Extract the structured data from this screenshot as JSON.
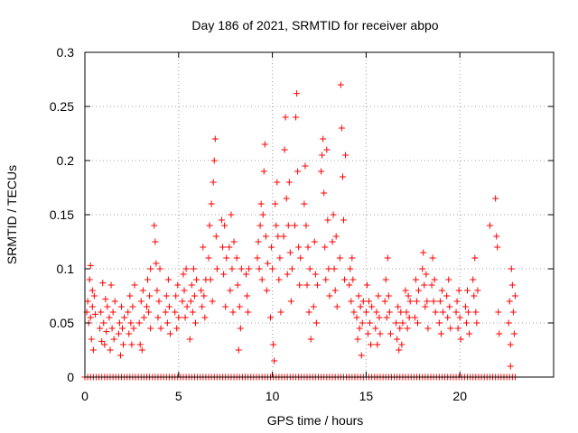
{
  "chart_data": {
    "type": "scatter",
    "title": "Day 186 of 2021, SRMTID for receiver abpo",
    "xlabel": "GPS time / hours",
    "ylabel": "SRMTID / TECUs",
    "xlim": [
      0,
      25
    ],
    "ylim": [
      0,
      0.3
    ],
    "x_ticks": [
      0,
      5,
      10,
      15,
      20
    ],
    "x_tick_labels": [
      "0",
      "5",
      "10",
      "15",
      "20"
    ],
    "y_ticks": [
      0,
      0.05,
      0.1,
      0.15,
      0.2,
      0.25,
      0.3
    ],
    "y_tick_labels": [
      "0",
      "0.05",
      "0.1",
      "0.15",
      "0.2",
      "0.25",
      "0.3"
    ],
    "grid": true,
    "marker": "+",
    "color": "#ff0000",
    "series": [
      {
        "name": "SRMTID",
        "points": [
          [
            0.1,
            0.06
          ],
          [
            0.15,
            0.07
          ],
          [
            0.2,
            0.05
          ],
          [
            0.25,
            0.09
          ],
          [
            0.3,
            0.055
          ],
          [
            0.3,
            0.103
          ],
          [
            0.35,
            0.035
          ],
          [
            0.4,
            0.065
          ],
          [
            0.4,
            0.08
          ],
          [
            0.45,
            0.025
          ],
          [
            0.5,
            0.075
          ],
          [
            0.55,
            0.058
          ],
          [
            0.8,
            0.045
          ],
          [
            0.85,
            0.06
          ],
          [
            0.9,
            0.033
          ],
          [
            0.95,
            0.087
          ],
          [
            1.0,
            0.05
          ],
          [
            1.05,
            0.03
          ],
          [
            1.1,
            0.072
          ],
          [
            1.15,
            0.042
          ],
          [
            1.2,
            0.065
          ],
          [
            1.3,
            0.055
          ],
          [
            1.35,
            0.025
          ],
          [
            1.4,
            0.085
          ],
          [
            1.45,
            0.045
          ],
          [
            1.5,
            0.06
          ],
          [
            1.55,
            0.035
          ],
          [
            1.6,
            0.07
          ],
          [
            1.8,
            0.04
          ],
          [
            1.85,
            0.05
          ],
          [
            1.9,
            0.02
          ],
          [
            1.95,
            0.065
          ],
          [
            2.0,
            0.045
          ],
          [
            2.05,
            0.03
          ],
          [
            2.1,
            0.055
          ],
          [
            2.3,
            0.06
          ],
          [
            2.35,
            0.04
          ],
          [
            2.4,
            0.075
          ],
          [
            2.45,
            0.05
          ],
          [
            2.5,
            0.03
          ],
          [
            2.55,
            0.065
          ],
          [
            2.6,
            0.045
          ],
          [
            2.65,
            0.085
          ],
          [
            2.9,
            0.05
          ],
          [
            2.95,
            0.03
          ],
          [
            3.0,
            0.07
          ],
          [
            3.05,
            0.025
          ],
          [
            3.1,
            0.08
          ],
          [
            3.15,
            0.055
          ],
          [
            3.3,
            0.065
          ],
          [
            3.35,
            0.09
          ],
          [
            3.4,
            0.06
          ],
          [
            3.45,
            0.075
          ],
          [
            3.5,
            0.1
          ],
          [
            3.5,
            0.045
          ],
          [
            3.7,
            0.14
          ],
          [
            3.75,
            0.125
          ],
          [
            3.8,
            0.105
          ],
          [
            3.85,
            0.08
          ],
          [
            3.9,
            0.055
          ],
          [
            3.95,
            0.07
          ],
          [
            4.0,
            0.1
          ],
          [
            4.05,
            0.045
          ],
          [
            4.3,
            0.06
          ],
          [
            4.35,
            0.075
          ],
          [
            4.4,
            0.05
          ],
          [
            4.45,
            0.09
          ],
          [
            4.5,
            0.065
          ],
          [
            4.55,
            0.04
          ],
          [
            4.8,
            0.06
          ],
          [
            4.85,
            0.075
          ],
          [
            4.9,
            0.045
          ],
          [
            4.95,
            0.085
          ],
          [
            5.0,
            0.055
          ],
          [
            5.2,
            0.07
          ],
          [
            5.25,
            0.095
          ],
          [
            5.3,
            0.08
          ],
          [
            5.35,
            0.055
          ],
          [
            5.4,
            0.1
          ],
          [
            5.45,
            0.065
          ],
          [
            5.6,
            0.035
          ],
          [
            5.65,
            0.07
          ],
          [
            5.7,
            0.085
          ],
          [
            5.75,
            0.06
          ],
          [
            5.8,
            0.1
          ],
          [
            5.85,
            0.075
          ],
          [
            5.9,
            0.05
          ],
          [
            5.95,
            0.09
          ],
          [
            6.2,
            0.08
          ],
          [
            6.25,
            0.065
          ],
          [
            6.3,
            0.12
          ],
          [
            6.35,
            0.075
          ],
          [
            6.4,
            0.055
          ],
          [
            6.45,
            0.09
          ],
          [
            6.6,
            0.11
          ],
          [
            6.65,
            0.14
          ],
          [
            6.7,
            0.09
          ],
          [
            6.75,
            0.16
          ],
          [
            6.8,
            0.07
          ],
          [
            6.85,
            0.18
          ],
          [
            6.9,
            0.2
          ],
          [
            6.95,
            0.22
          ],
          [
            7.0,
            0.13
          ],
          [
            7.05,
            0.1
          ],
          [
            7.3,
            0.145
          ],
          [
            7.35,
            0.12
          ],
          [
            7.4,
            0.095
          ],
          [
            7.45,
            0.14
          ],
          [
            7.5,
            0.065
          ],
          [
            7.55,
            0.11
          ],
          [
            7.7,
            0.12
          ],
          [
            7.75,
            0.08
          ],
          [
            7.8,
            0.15
          ],
          [
            7.85,
            0.1
          ],
          [
            7.9,
            0.06
          ],
          [
            7.95,
            0.125
          ],
          [
            8.1,
            0.11
          ],
          [
            8.15,
            0.085
          ],
          [
            8.2,
            0.025
          ],
          [
            8.25,
            0.065
          ],
          [
            8.3,
            0.045
          ],
          [
            8.35,
            0.1
          ],
          [
            8.6,
            0.095
          ],
          [
            8.65,
            0.075
          ],
          [
            8.7,
            0.06
          ],
          [
            8.75,
            0.1
          ],
          [
            9.2,
            0.11
          ],
          [
            9.25,
            0.125
          ],
          [
            9.3,
            0.1
          ],
          [
            9.35,
            0.14
          ],
          [
            9.4,
            0.16
          ],
          [
            9.45,
            0.09
          ],
          [
            9.5,
            0.15
          ],
          [
            9.55,
            0.19
          ],
          [
            9.6,
            0.215
          ],
          [
            9.65,
            0.13
          ],
          [
            9.7,
            0.08
          ],
          [
            9.75,
            0.105
          ],
          [
            9.9,
            0.055
          ],
          [
            9.95,
            0.12
          ],
          [
            10.0,
            0.1
          ],
          [
            10.05,
            0.03
          ],
          [
            10.1,
            0.015
          ],
          [
            10.15,
            0.16
          ],
          [
            10.2,
            0.14
          ],
          [
            10.25,
            0.18
          ],
          [
            10.3,
            0.13
          ],
          [
            10.35,
            0.09
          ],
          [
            10.4,
            0.11
          ],
          [
            10.45,
            0.06
          ],
          [
            10.6,
            0.13
          ],
          [
            10.65,
            0.21
          ],
          [
            10.7,
            0.24
          ],
          [
            10.75,
            0.165
          ],
          [
            10.8,
            0.095
          ],
          [
            10.85,
            0.14
          ],
          [
            10.9,
            0.18
          ],
          [
            10.95,
            0.115
          ],
          [
            11.0,
            0.07
          ],
          [
            11.05,
            0.1
          ],
          [
            11.2,
            0.14
          ],
          [
            11.25,
            0.24
          ],
          [
            11.3,
            0.262
          ],
          [
            11.35,
            0.19
          ],
          [
            11.4,
            0.12
          ],
          [
            11.45,
            0.085
          ],
          [
            11.5,
            0.11
          ],
          [
            11.7,
            0.16
          ],
          [
            11.75,
            0.195
          ],
          [
            11.8,
            0.14
          ],
          [
            11.85,
            0.085
          ],
          [
            11.9,
            0.12
          ],
          [
            11.95,
            0.06
          ],
          [
            12.0,
            0.1
          ],
          [
            12.05,
            0.035
          ],
          [
            12.2,
            0.065
          ],
          [
            12.25,
            0.125
          ],
          [
            12.3,
            0.095
          ],
          [
            12.35,
            0.05
          ],
          [
            12.4,
            0.085
          ],
          [
            12.6,
            0.19
          ],
          [
            12.65,
            0.205
          ],
          [
            12.7,
            0.22
          ],
          [
            12.75,
            0.17
          ],
          [
            12.8,
            0.12
          ],
          [
            12.85,
            0.09
          ],
          [
            12.9,
            0.21
          ],
          [
            12.95,
            0.145
          ],
          [
            13.0,
            0.1
          ],
          [
            13.05,
            0.075
          ],
          [
            13.2,
            0.125
          ],
          [
            13.25,
            0.15
          ],
          [
            13.3,
            0.1
          ],
          [
            13.35,
            0.08
          ],
          [
            13.4,
            0.13
          ],
          [
            13.45,
            0.065
          ],
          [
            13.6,
            0.11
          ],
          [
            13.65,
            0.27
          ],
          [
            13.7,
            0.23
          ],
          [
            13.75,
            0.185
          ],
          [
            13.8,
            0.145
          ],
          [
            13.85,
            0.09
          ],
          [
            13.9,
            0.205
          ],
          [
            14.1,
            0.085
          ],
          [
            14.15,
            0.1
          ],
          [
            14.2,
            0.07
          ],
          [
            14.25,
            0.11
          ],
          [
            14.3,
            0.09
          ],
          [
            14.35,
            0.06
          ],
          [
            14.5,
            0.055
          ],
          [
            14.55,
            0.035
          ],
          [
            14.6,
            0.075
          ],
          [
            14.65,
            0.045
          ],
          [
            14.7,
            0.065
          ],
          [
            14.75,
            0.02
          ],
          [
            14.8,
            0.05
          ],
          [
            14.85,
            0.07
          ],
          [
            15.0,
            0.06
          ],
          [
            15.05,
            0.085
          ],
          [
            15.1,
            0.04
          ],
          [
            15.15,
            0.07
          ],
          [
            15.2,
            0.05
          ],
          [
            15.25,
            0.03
          ],
          [
            15.3,
            0.065
          ],
          [
            15.5,
            0.045
          ],
          [
            15.55,
            0.06
          ],
          [
            15.6,
            0.03
          ],
          [
            15.65,
            0.075
          ],
          [
            15.7,
            0.055
          ],
          [
            15.75,
            0.04
          ],
          [
            16.0,
            0.07
          ],
          [
            16.05,
            0.09
          ],
          [
            16.1,
            0.055
          ],
          [
            16.15,
            0.11
          ],
          [
            16.2,
            0.075
          ],
          [
            16.25,
            0.06
          ],
          [
            16.3,
            0.04
          ],
          [
            16.6,
            0.05
          ],
          [
            16.65,
            0.035
          ],
          [
            16.7,
            0.065
          ],
          [
            16.75,
            0.025
          ],
          [
            16.8,
            0.045
          ],
          [
            16.85,
            0.06
          ],
          [
            16.9,
            0.03
          ],
          [
            16.95,
            0.05
          ],
          [
            17.1,
            0.08
          ],
          [
            17.15,
            0.06
          ],
          [
            17.2,
            0.045
          ],
          [
            17.25,
            0.075
          ],
          [
            17.3,
            0.055
          ],
          [
            17.35,
            0.07
          ],
          [
            17.6,
            0.055
          ],
          [
            17.65,
            0.09
          ],
          [
            17.7,
            0.07
          ],
          [
            17.75,
            0.05
          ],
          [
            17.8,
            0.08
          ],
          [
            18.0,
            0.1
          ],
          [
            18.05,
            0.115
          ],
          [
            18.1,
            0.085
          ],
          [
            18.15,
            0.065
          ],
          [
            18.2,
            0.095
          ],
          [
            18.25,
            0.07
          ],
          [
            18.3,
            0.045
          ],
          [
            18.5,
            0.085
          ],
          [
            18.55,
            0.11
          ],
          [
            18.6,
            0.07
          ],
          [
            18.65,
            0.09
          ],
          [
            18.7,
            0.06
          ],
          [
            18.9,
            0.05
          ],
          [
            18.95,
            0.07
          ],
          [
            19.0,
            0.04
          ],
          [
            19.05,
            0.08
          ],
          [
            19.1,
            0.06
          ],
          [
            19.3,
            0.075
          ],
          [
            19.35,
            0.055
          ],
          [
            19.4,
            0.09
          ],
          [
            19.45,
            0.065
          ],
          [
            19.5,
            0.045
          ],
          [
            19.8,
            0.06
          ],
          [
            19.85,
            0.07
          ],
          [
            19.9,
            0.045
          ],
          [
            19.95,
            0.08
          ],
          [
            20.0,
            0.055
          ],
          [
            20.05,
            0.035
          ],
          [
            20.3,
            0.065
          ],
          [
            20.35,
            0.05
          ],
          [
            20.4,
            0.08
          ],
          [
            20.45,
            0.06
          ],
          [
            20.5,
            0.04
          ],
          [
            20.7,
            0.09
          ],
          [
            20.75,
            0.075
          ],
          [
            20.8,
            0.11
          ],
          [
            20.85,
            0.06
          ],
          [
            20.9,
            0.05
          ],
          [
            20.95,
            0.08
          ],
          [
            21.6,
            0.14
          ],
          [
            21.9,
            0.165
          ],
          [
            21.95,
            0.13
          ],
          [
            22.0,
            0.12
          ],
          [
            22.05,
            0.06
          ],
          [
            22.1,
            0.04
          ],
          [
            22.6,
            0.05
          ],
          [
            22.65,
            0.07
          ],
          [
            22.7,
            0.03
          ],
          [
            22.75,
            0.1
          ],
          [
            22.8,
            0.085
          ],
          [
            22.85,
            0.06
          ],
          [
            22.9,
            0.04
          ],
          [
            22.95,
            0.075
          ],
          [
            22.7,
            0.01
          ]
        ]
      },
      {
        "name": "zero baseline",
        "x_range": [
          0,
          23
        ],
        "x_step": 0.15,
        "y": 0
      }
    ]
  }
}
